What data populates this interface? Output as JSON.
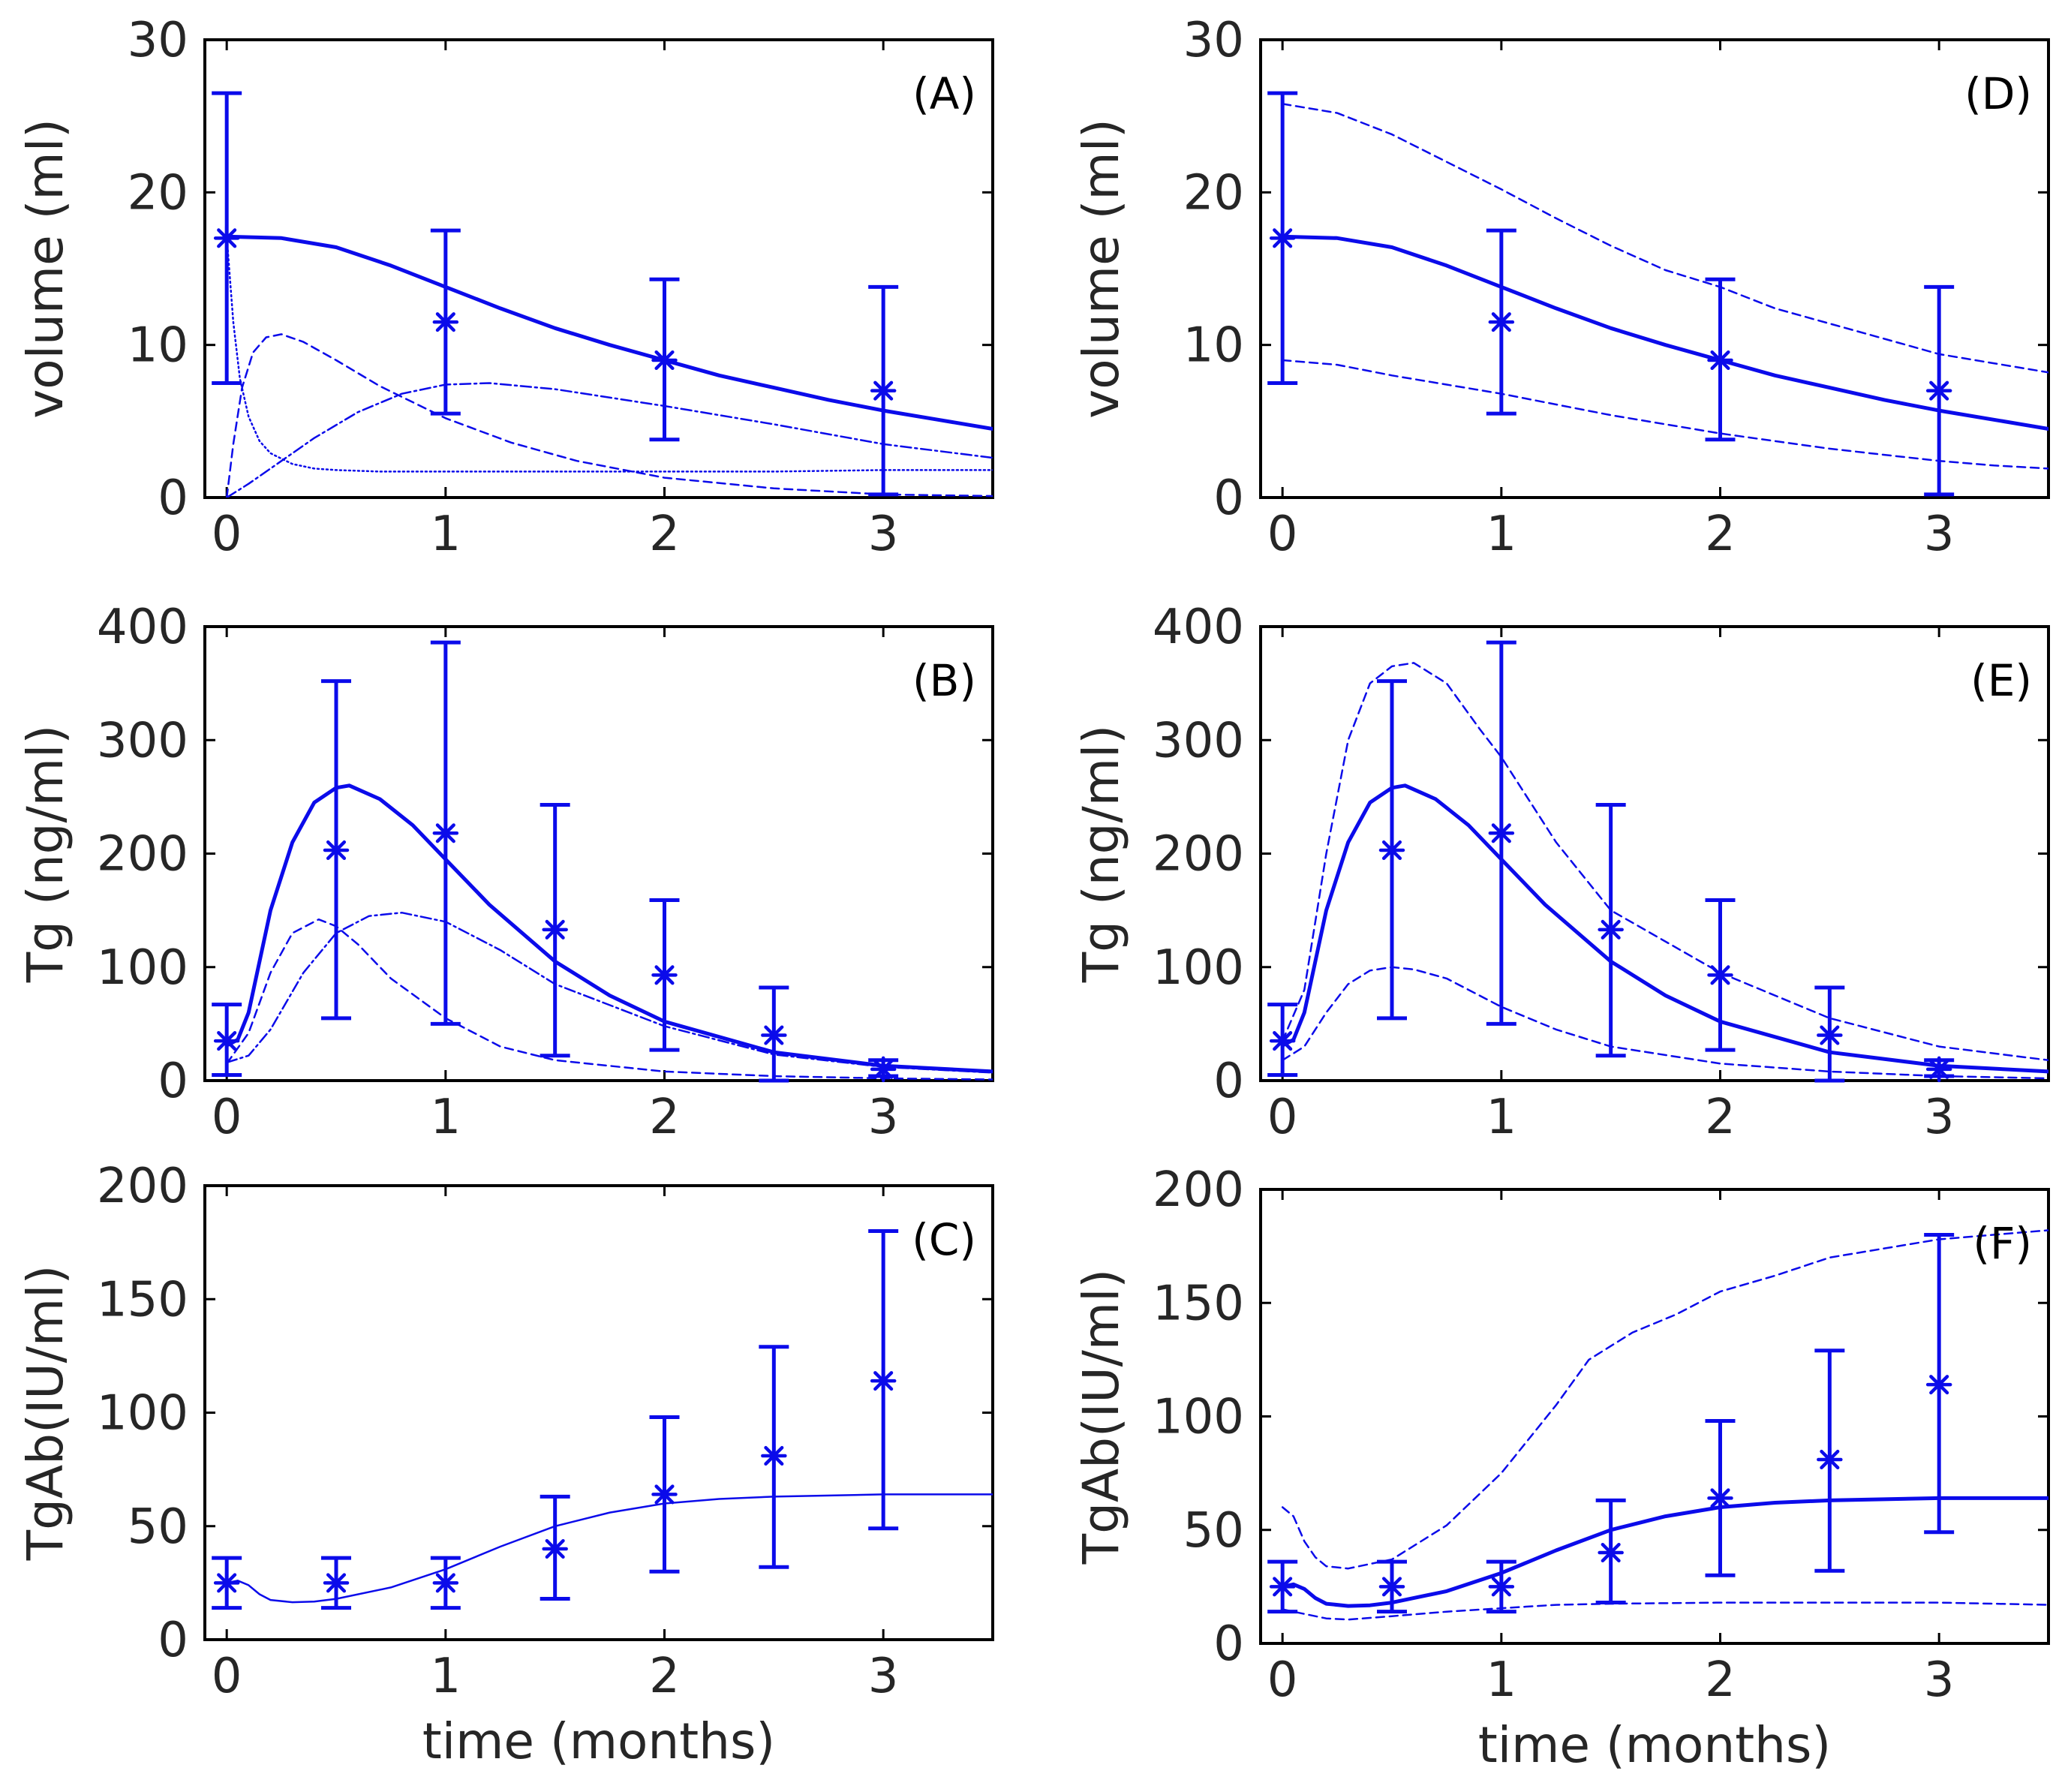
{
  "figure": {
    "line_color": "#0b0bea"
  },
  "chart_data": [
    {
      "id": "A",
      "type": "line",
      "panel_label": "(A)",
      "xlabel": "",
      "ylabel": "volume (ml)",
      "xlim": [
        -0.1,
        3.5
      ],
      "ylim": [
        0,
        30
      ],
      "xticks": [
        "0",
        "1",
        "2",
        "3"
      ],
      "yticks": [
        "0",
        "10",
        "20",
        "30"
      ],
      "series": [
        {
          "name": "model total",
          "style": "solid-thick",
          "x": [
            0,
            0.25,
            0.5,
            0.75,
            1,
            1.25,
            1.5,
            1.75,
            2,
            2.25,
            2.5,
            2.75,
            3,
            3.25,
            3.5
          ],
          "y": [
            17.1,
            17.0,
            16.4,
            15.2,
            13.8,
            12.4,
            11.1,
            10.0,
            9.0,
            8.0,
            7.2,
            6.4,
            5.7,
            5.1,
            4.5
          ]
        },
        {
          "name": "component 1",
          "style": "dotted",
          "x": [
            0,
            0.03,
            0.06,
            0.1,
            0.15,
            0.2,
            0.3,
            0.4,
            0.5,
            0.7,
            1,
            1.5,
            2,
            2.5,
            3,
            3.5
          ],
          "y": [
            17.1,
            11.5,
            7.8,
            5.3,
            3.7,
            2.9,
            2.2,
            1.9,
            1.8,
            1.7,
            1.7,
            1.7,
            1.7,
            1.7,
            1.8,
            1.8
          ]
        },
        {
          "name": "component 2",
          "style": "dashed",
          "x": [
            0,
            0.03,
            0.07,
            0.12,
            0.18,
            0.25,
            0.35,
            0.5,
            0.7,
            1,
            1.3,
            1.6,
            2,
            2.5,
            3,
            3.5
          ],
          "y": [
            0,
            3.5,
            7.2,
            9.5,
            10.5,
            10.7,
            10.2,
            9.0,
            7.3,
            5.2,
            3.6,
            2.4,
            1.3,
            0.6,
            0.2,
            0.1
          ]
        },
        {
          "name": "component 3",
          "style": "dashdot",
          "x": [
            0,
            0.1,
            0.25,
            0.4,
            0.6,
            0.8,
            1,
            1.2,
            1.5,
            2,
            2.5,
            3,
            3.5
          ],
          "y": [
            0,
            0.9,
            2.4,
            3.9,
            5.6,
            6.8,
            7.4,
            7.5,
            7.1,
            6.0,
            4.8,
            3.5,
            2.6
          ]
        }
      ],
      "errorbars": {
        "x": [
          0,
          1,
          2,
          3
        ],
        "y": [
          17,
          11.5,
          9,
          7
        ],
        "lower": [
          7.5,
          5.5,
          3.8,
          0.2
        ],
        "upper": [
          26.5,
          17.5,
          14.3,
          13.8
        ]
      }
    },
    {
      "id": "D",
      "type": "line",
      "panel_label": "(D)",
      "xlabel": "",
      "ylabel": "volume (ml)",
      "xlim": [
        -0.1,
        3.5
      ],
      "ylim": [
        0,
        30
      ],
      "xticks": [
        "0",
        "1",
        "2",
        "3"
      ],
      "yticks": [
        "0",
        "10",
        "20",
        "30"
      ],
      "series": [
        {
          "name": "model",
          "style": "solid-thick",
          "x": [
            0,
            0.25,
            0.5,
            0.75,
            1,
            1.25,
            1.5,
            1.75,
            2,
            2.25,
            2.5,
            2.75,
            3,
            3.25,
            3.5
          ],
          "y": [
            17.1,
            17.0,
            16.4,
            15.2,
            13.8,
            12.4,
            11.1,
            10.0,
            9.0,
            8.0,
            7.2,
            6.4,
            5.7,
            5.1,
            4.5
          ]
        },
        {
          "name": "upper bound",
          "style": "dashed",
          "x": [
            0,
            0.25,
            0.5,
            0.75,
            1,
            1.25,
            1.5,
            1.75,
            2,
            2.25,
            2.5,
            2.75,
            3,
            3.25,
            3.5
          ],
          "y": [
            25.8,
            25.2,
            23.8,
            22.0,
            20.2,
            18.3,
            16.5,
            14.9,
            13.8,
            12.4,
            11.4,
            10.4,
            9.4,
            8.8,
            8.2
          ]
        },
        {
          "name": "lower bound",
          "style": "dashed",
          "x": [
            0,
            0.25,
            0.5,
            0.75,
            1,
            1.25,
            1.5,
            1.75,
            2,
            2.25,
            2.5,
            2.75,
            3,
            3.25,
            3.5
          ],
          "y": [
            9.0,
            8.7,
            8.0,
            7.4,
            6.8,
            6.1,
            5.4,
            4.8,
            4.2,
            3.7,
            3.2,
            2.8,
            2.4,
            2.1,
            1.9
          ]
        }
      ],
      "errorbars": {
        "x": [
          0,
          1,
          2,
          3
        ],
        "y": [
          17,
          11.5,
          9,
          7
        ],
        "lower": [
          7.5,
          5.5,
          3.8,
          0.2
        ],
        "upper": [
          26.5,
          17.5,
          14.3,
          13.8
        ]
      }
    },
    {
      "id": "B",
      "type": "line",
      "panel_label": "(B)",
      "xlabel": "",
      "ylabel": "Tg (ng/ml)",
      "xlim": [
        -0.1,
        3.5
      ],
      "ylim": [
        0,
        400
      ],
      "xticks": [
        "0",
        "1",
        "2",
        "3"
      ],
      "yticks": [
        "0",
        "100",
        "200",
        "300",
        "400"
      ],
      "series": [
        {
          "name": "model total",
          "style": "solid-thick",
          "x": [
            0,
            0.05,
            0.1,
            0.2,
            0.3,
            0.4,
            0.5,
            0.56,
            0.7,
            0.85,
            1,
            1.2,
            1.5,
            1.75,
            2,
            2.5,
            3,
            3.5
          ],
          "y": [
            31,
            36,
            60,
            150,
            210,
            245,
            258,
            260,
            248,
            225,
            195,
            155,
            105,
            75,
            52,
            25,
            13,
            8
          ]
        },
        {
          "name": "component 1",
          "style": "dashed",
          "x": [
            0,
            0.1,
            0.2,
            0.3,
            0.42,
            0.5,
            0.6,
            0.75,
            1,
            1.25,
            1.5,
            2,
            2.5,
            3,
            3.5
          ],
          "y": [
            15,
            42,
            95,
            130,
            142,
            136,
            120,
            90,
            55,
            30,
            18,
            8,
            4,
            2,
            1
          ]
        },
        {
          "name": "component 2",
          "style": "dashdot",
          "x": [
            0,
            0.1,
            0.2,
            0.35,
            0.5,
            0.65,
            0.8,
            1,
            1.25,
            1.5,
            2,
            2.5,
            3,
            3.5
          ],
          "y": [
            16,
            22,
            45,
            95,
            130,
            145,
            148,
            140,
            115,
            85,
            48,
            23,
            12,
            7
          ]
        }
      ],
      "errorbars": {
        "x": [
          0,
          0.5,
          1,
          1.5,
          2,
          2.5,
          3
        ],
        "y": [
          35,
          203,
          218,
          133,
          93,
          40,
          10
        ],
        "lower": [
          5,
          55,
          50,
          22,
          27,
          0,
          4
        ],
        "upper": [
          67,
          352,
          386,
          243,
          159,
          82,
          18
        ]
      }
    },
    {
      "id": "E",
      "type": "line",
      "panel_label": "(E)",
      "xlabel": "",
      "ylabel": "Tg (ng/ml)",
      "xlim": [
        -0.1,
        3.5
      ],
      "ylim": [
        0,
        400
      ],
      "xticks": [
        "0",
        "1",
        "2",
        "3"
      ],
      "yticks": [
        "0",
        "100",
        "200",
        "300",
        "400"
      ],
      "series": [
        {
          "name": "model",
          "style": "solid-thick",
          "x": [
            0,
            0.05,
            0.1,
            0.2,
            0.3,
            0.4,
            0.5,
            0.56,
            0.7,
            0.85,
            1,
            1.2,
            1.5,
            1.75,
            2,
            2.5,
            3,
            3.5
          ],
          "y": [
            31,
            36,
            60,
            150,
            210,
            245,
            258,
            260,
            248,
            225,
            195,
            155,
            105,
            75,
            52,
            25,
            13,
            8
          ]
        },
        {
          "name": "upper bound",
          "style": "dashed",
          "x": [
            0,
            0.1,
            0.2,
            0.3,
            0.4,
            0.5,
            0.6,
            0.75,
            0.9,
            1,
            1.25,
            1.5,
            2,
            2.5,
            3,
            3.5
          ],
          "y": [
            35,
            80,
            200,
            300,
            350,
            365,
            368,
            350,
            310,
            285,
            210,
            150,
            95,
            55,
            30,
            18
          ]
        },
        {
          "name": "lower bound",
          "style": "dashed",
          "x": [
            0,
            0.1,
            0.2,
            0.3,
            0.4,
            0.5,
            0.6,
            0.75,
            1,
            1.25,
            1.5,
            2,
            2.5,
            3,
            3.5
          ],
          "y": [
            18,
            30,
            60,
            85,
            97,
            100,
            98,
            90,
            65,
            45,
            30,
            15,
            8,
            4,
            2
          ]
        }
      ],
      "errorbars": {
        "x": [
          0,
          0.5,
          1,
          1.5,
          2,
          2.5,
          3
        ],
        "y": [
          35,
          203,
          218,
          133,
          93,
          40,
          10
        ],
        "lower": [
          5,
          55,
          50,
          22,
          27,
          0,
          4
        ],
        "upper": [
          67,
          352,
          386,
          243,
          159,
          82,
          18
        ]
      }
    },
    {
      "id": "C",
      "type": "line",
      "panel_label": "(C)",
      "xlabel": "time (months)",
      "ylabel": "TgAb(IU/ml)",
      "xlim": [
        -0.1,
        3.5
      ],
      "ylim": [
        0,
        200
      ],
      "xticks": [
        "0",
        "1",
        "2",
        "3"
      ],
      "yticks": [
        "0",
        "50",
        "100",
        "150",
        "200"
      ],
      "series": [
        {
          "name": "model",
          "style": "solid-thin",
          "x": [
            0,
            0.05,
            0.1,
            0.15,
            0.2,
            0.3,
            0.4,
            0.5,
            0.75,
            1,
            1.25,
            1.5,
            1.75,
            2,
            2.25,
            2.5,
            3,
            3.5
          ],
          "y": [
            25,
            26,
            24,
            20,
            17.5,
            16.5,
            16.8,
            18,
            23,
            31,
            41,
            50,
            56,
            60,
            62,
            63,
            64,
            64
          ]
        }
      ],
      "errorbars": {
        "x": [
          0,
          0.5,
          1,
          1.5,
          2,
          2.5,
          3
        ],
        "y": [
          25,
          25,
          25,
          40,
          64,
          81,
          114
        ],
        "lower": [
          14,
          14,
          14,
          18,
          30,
          32,
          49
        ],
        "upper": [
          36,
          36,
          36,
          63,
          98,
          129,
          180
        ]
      }
    },
    {
      "id": "F",
      "type": "line",
      "panel_label": "(F)",
      "xlabel": "time (months)",
      "ylabel": "TgAb(IU/ml)",
      "xlim": [
        -0.1,
        3.5
      ],
      "ylim": [
        0,
        200
      ],
      "xticks": [
        "0",
        "1",
        "2",
        "3"
      ],
      "yticks": [
        "0",
        "50",
        "100",
        "150",
        "200"
      ],
      "series": [
        {
          "name": "model",
          "style": "solid-thick",
          "x": [
            0,
            0.05,
            0.1,
            0.15,
            0.2,
            0.3,
            0.4,
            0.5,
            0.75,
            1,
            1.25,
            1.5,
            1.75,
            2,
            2.25,
            2.5,
            3,
            3.5
          ],
          "y": [
            25,
            26,
            24,
            20,
            17.5,
            16.5,
            16.8,
            18,
            23,
            31,
            41,
            50,
            56,
            60,
            62,
            63,
            64,
            64
          ]
        },
        {
          "name": "upper bound",
          "style": "dashed",
          "x": [
            0,
            0.05,
            0.1,
            0.15,
            0.2,
            0.3,
            0.4,
            0.5,
            0.75,
            1,
            1.25,
            1.4,
            1.6,
            1.8,
            2,
            2.25,
            2.5,
            3,
            3.5
          ],
          "y": [
            60,
            56,
            45,
            38,
            34,
            33,
            35,
            37,
            52,
            75,
            105,
            125,
            137,
            145,
            155,
            162,
            170,
            178,
            182
          ]
        },
        {
          "name": "lower bound",
          "style": "dashed",
          "x": [
            0,
            0.1,
            0.2,
            0.3,
            0.5,
            0.75,
            1,
            1.25,
            1.5,
            2,
            2.5,
            3,
            3.5
          ],
          "y": [
            15,
            13,
            11,
            10.5,
            12,
            14,
            15.5,
            17,
            17.5,
            18,
            18,
            18,
            17
          ]
        }
      ],
      "errorbars": {
        "x": [
          0,
          0.5,
          1,
          1.5,
          2,
          2.5,
          3
        ],
        "y": [
          25,
          25,
          25,
          40,
          64,
          81,
          114
        ],
        "lower": [
          14,
          14,
          14,
          18,
          30,
          32,
          49
        ],
        "upper": [
          36,
          36,
          36,
          63,
          98,
          129,
          180
        ]
      }
    }
  ]
}
